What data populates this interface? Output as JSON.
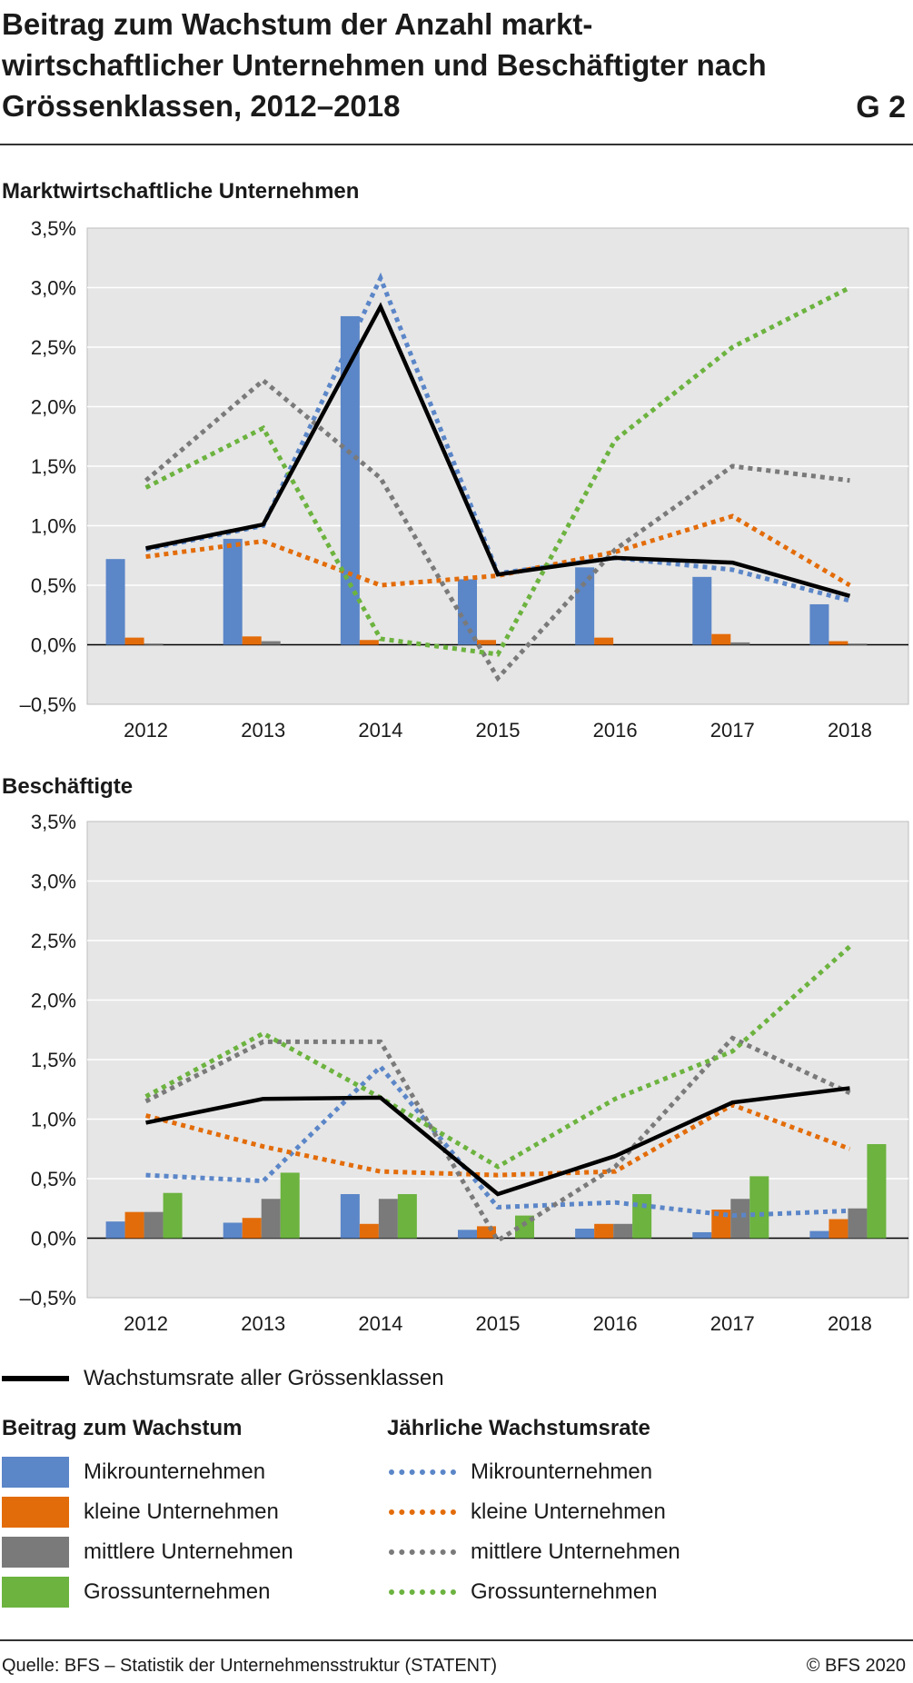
{
  "title": "Beitrag zum Wachstum der Anzahl markt-wirtschaftlicher Unternehmen und Beschäftigter nach Grössenklassen, 2012–2018",
  "chart_id": "G 2",
  "colors": {
    "micro": "#5b86c8",
    "small": "#e36c0a",
    "medium": "#7a7a7a",
    "large": "#6cb33f",
    "total": "#000000",
    "plot_bg": "#e6e6e6",
    "grid": "#ffffff"
  },
  "chart_data": [
    {
      "type": "bar+line",
      "title": "Marktwirtschaftliche Unternehmen",
      "categories": [
        "2012",
        "2013",
        "2014",
        "2015",
        "2016",
        "2017",
        "2018"
      ],
      "y_ticks": [
        "3,5%",
        "3,0%",
        "2,5%",
        "2,0%",
        "1,5%",
        "1,0%",
        "0,5%",
        "0,0%",
        "–0,5%"
      ],
      "ylim": [
        -0.5,
        3.5
      ],
      "grid": true,
      "bars": [
        {
          "name": "Mikrounternehmen",
          "values": [
            0.72,
            0.89,
            2.76,
            0.55,
            0.65,
            0.57,
            0.34
          ]
        },
        {
          "name": "kleine Unternehmen",
          "values": [
            0.06,
            0.07,
            0.04,
            0.04,
            0.06,
            0.09,
            0.03
          ]
        },
        {
          "name": "mittlere Unternehmen",
          "values": [
            0.01,
            0.03,
            0.0,
            0.0,
            0.0,
            0.02,
            0.01
          ]
        },
        {
          "name": "Grossunternehmen",
          "values": [
            0.0,
            0.0,
            0.0,
            0.0,
            0.0,
            0.0,
            0.0
          ]
        }
      ],
      "rates": [
        {
          "name": "Mikrounternehmen",
          "values": [
            0.8,
            1.0,
            3.08,
            0.6,
            0.73,
            0.63,
            0.37
          ]
        },
        {
          "name": "kleine Unternehmen",
          "values": [
            0.74,
            0.87,
            0.5,
            0.58,
            0.78,
            1.08,
            0.5
          ]
        },
        {
          "name": "mittlere Unternehmen",
          "values": [
            1.38,
            2.22,
            1.4,
            -0.28,
            0.8,
            1.5,
            1.38
          ]
        },
        {
          "name": "Grossunternehmen",
          "values": [
            1.32,
            1.82,
            0.05,
            -0.08,
            1.72,
            2.5,
            3.0
          ]
        }
      ],
      "total": {
        "name": "Wachstumsrate aller Grössenklassen",
        "values": [
          0.81,
          1.01,
          2.84,
          0.59,
          0.73,
          0.69,
          0.41
        ]
      }
    },
    {
      "type": "bar+line",
      "title": "Beschäftigte",
      "categories": [
        "2012",
        "2013",
        "2014",
        "2015",
        "2016",
        "2017",
        "2018"
      ],
      "y_ticks": [
        "3,5%",
        "3,0%",
        "2,5%",
        "2,0%",
        "1,5%",
        "1,0%",
        "0,5%",
        "0,0%",
        "–0,5%"
      ],
      "ylim": [
        -0.5,
        3.5
      ],
      "grid": true,
      "bars": [
        {
          "name": "Mikrounternehmen",
          "values": [
            0.14,
            0.13,
            0.37,
            0.07,
            0.08,
            0.05,
            0.06
          ]
        },
        {
          "name": "kleine Unternehmen",
          "values": [
            0.22,
            0.17,
            0.12,
            0.1,
            0.12,
            0.24,
            0.16
          ]
        },
        {
          "name": "mittlere Unternehmen",
          "values": [
            0.22,
            0.33,
            0.33,
            0.0,
            0.12,
            0.33,
            0.25
          ]
        },
        {
          "name": "Grossunternehmen",
          "values": [
            0.38,
            0.55,
            0.37,
            0.19,
            0.37,
            0.52,
            0.79
          ]
        }
      ],
      "rates": [
        {
          "name": "Mikrounternehmen",
          "values": [
            0.53,
            0.48,
            1.44,
            0.26,
            0.3,
            0.19,
            0.23
          ]
        },
        {
          "name": "kleine Unternehmen",
          "values": [
            1.03,
            0.77,
            0.56,
            0.53,
            0.56,
            1.12,
            0.75
          ]
        },
        {
          "name": "mittlere Unternehmen",
          "values": [
            1.15,
            1.65,
            1.65,
            -0.02,
            0.6,
            1.68,
            1.22
          ]
        },
        {
          "name": "Grossunternehmen",
          "values": [
            1.19,
            1.72,
            1.18,
            0.6,
            1.17,
            1.57,
            2.45
          ]
        }
      ],
      "total": {
        "name": "Wachstumsrate aller Grössenklassen",
        "values": [
          0.97,
          1.17,
          1.18,
          0.37,
          0.69,
          1.14,
          1.26
        ]
      }
    }
  ],
  "legend": {
    "total_label": "Wachstumsrate aller Grössenklassen",
    "contribution_heading": "Beitrag zum Wachstum",
    "rate_heading": "Jährliche Wachstumsrate",
    "items": [
      "Mikrounternehmen",
      "kleine Unternehmen",
      "mittlere Unternehmen",
      "Grossunternehmen"
    ]
  },
  "footer": {
    "source": "Quelle: BFS – Statistik der Unternehmensstruktur (STATENT)",
    "copyright": "© BFS 2020"
  }
}
